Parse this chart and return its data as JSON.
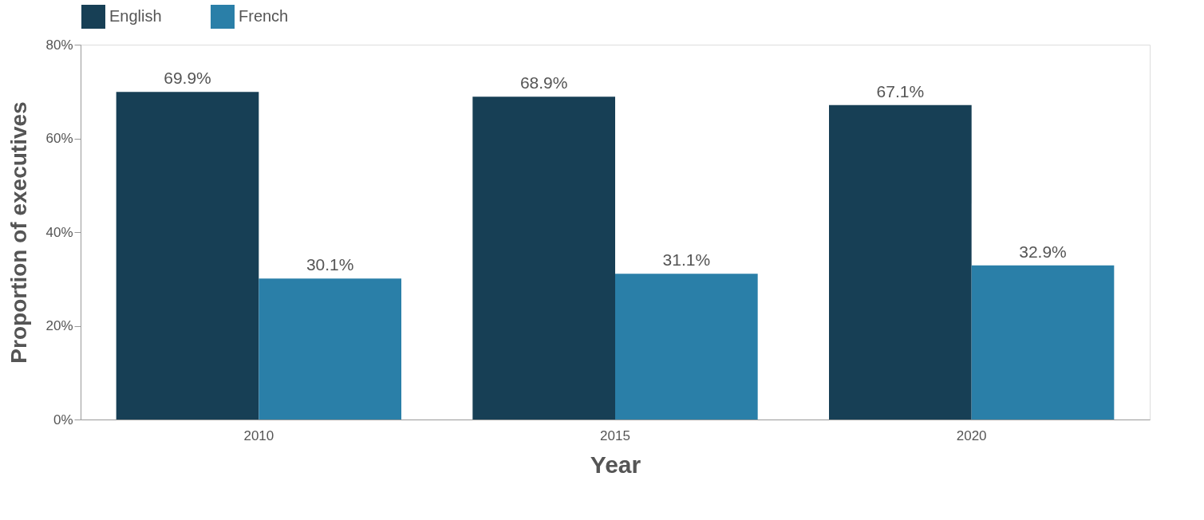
{
  "chart_data": {
    "type": "bar",
    "xlabel": "Year",
    "ylabel": "Proportion of executives",
    "categories": [
      "2010",
      "2015",
      "2020"
    ],
    "series": [
      {
        "name": "English",
        "color": "#173f55",
        "values": [
          69.9,
          68.9,
          67.1
        ],
        "value_labels": [
          "69.9%",
          "68.9%",
          "67.1%"
        ]
      },
      {
        "name": "French",
        "color": "#2a7fa8",
        "values": [
          30.1,
          31.1,
          32.9
        ],
        "value_labels": [
          "30.1%",
          "31.1%",
          "32.9%"
        ]
      }
    ],
    "ylim": [
      0,
      80
    ],
    "yticks": [
      {
        "value": 0,
        "label": "0%"
      },
      {
        "value": 20,
        "label": "20%"
      },
      {
        "value": 40,
        "label": "40%"
      },
      {
        "value": 60,
        "label": "60%"
      },
      {
        "value": 80,
        "label": "80%"
      }
    ],
    "grid": false,
    "legend": "top"
  }
}
